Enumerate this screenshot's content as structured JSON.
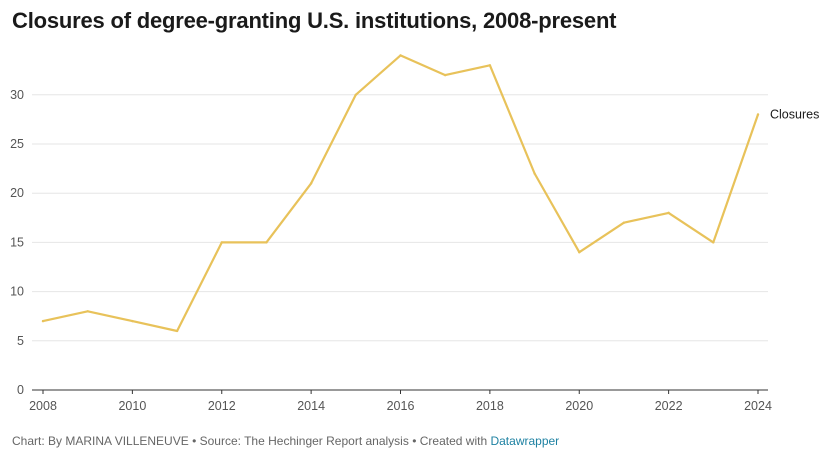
{
  "title": "Closures of degree-granting U.S. institutions, 2008-present",
  "footer": {
    "credit": "Chart: By MARINA VILLENEUVE",
    "separator": "•",
    "source": "Source: The Hechinger Report analysis",
    "created": "Created with",
    "tool": "Datawrapper"
  },
  "colors": {
    "line": "#e8c25a",
    "grid": "#e6e6e6",
    "axis": "#333333",
    "text": "#555555"
  },
  "chart_data": {
    "type": "line",
    "title": "Closures of degree-granting U.S. institutions, 2008-present",
    "xlabel": "",
    "ylabel": "",
    "x": [
      2008,
      2009,
      2010,
      2011,
      2012,
      2013,
      2014,
      2015,
      2016,
      2017,
      2018,
      2019,
      2020,
      2021,
      2022,
      2023,
      2024
    ],
    "series": [
      {
        "name": "Closures",
        "values": [
          7,
          8,
          7,
          6,
          15,
          15,
          21,
          30,
          34,
          32,
          33,
          22,
          14,
          17,
          18,
          15,
          28
        ]
      }
    ],
    "xlim": [
      2008,
      2024
    ],
    "ylim": [
      0,
      34
    ],
    "x_ticks": [
      "2008",
      "2010",
      "2012",
      "2014",
      "2016",
      "2018",
      "2020",
      "2022",
      "2024"
    ],
    "y_ticks": [
      "0",
      "5",
      "10",
      "15",
      "20",
      "25",
      "30"
    ],
    "grid": true,
    "legend": "direct-label-right"
  }
}
